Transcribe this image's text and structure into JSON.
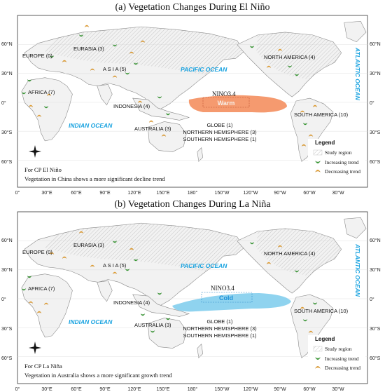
{
  "panels": [
    {
      "title": "(a) Vegetation Changes During El Niño",
      "nino_label": "NINO3.4",
      "anomaly_label": "Warm",
      "anomaly_color": "#f59a6f",
      "anomaly_text_color": "#f6f0ea",
      "note_line1": "For CP El Niño",
      "note_line2": "Vegetation in China shows a more significant decline trend"
    },
    {
      "title": "(b) Vegetation Changes During La Niña",
      "nino_label": "NINO3.4",
      "anomaly_label": "Cold",
      "anomaly_color": "#8fd3ef",
      "anomaly_text_color": "#1a90d8",
      "note_line1": "For CP La Niña",
      "note_line2": "Vegetation in Australia shows a more significant growth trend"
    }
  ],
  "regions": {
    "europe": "EUROPE (0)",
    "eurasia": "EURASIA (3)",
    "asia": "A S I A (5)",
    "africa": "AFRICA (7)",
    "indonesia": "INDONESIA (4)",
    "australia": "AUSTRALIA (3)",
    "north_america": "NORTH AMERICA (4)",
    "south_america": "SOUTH AMERICA (10)",
    "globe": "GLOBE (1)",
    "nh": "NORTHERN HEMISPHERE (3)",
    "sh": "SOUTHERN HEMISPHERE (1)"
  },
  "oceans": {
    "pacific": "PACIFIC OCEAN",
    "indian": "INDIAN OCEAN",
    "atlantic": "ATLANTIC OCEAN"
  },
  "legend": {
    "title": "Legend",
    "study_region": "Study region",
    "increasing": "Increasing trend",
    "decreasing": "Decreasing trend"
  },
  "axes": {
    "lat_left": [
      "60°N",
      "30°N",
      "0°",
      "30°S",
      "60°S"
    ],
    "lat_right": [
      "60°N",
      "30°N",
      "0°",
      "30°S",
      "60°S"
    ],
    "lon": [
      "0°",
      "30°E",
      "60°E",
      "90°E",
      "120°E",
      "150°E",
      "180°",
      "150°W",
      "120°W",
      "90°W",
      "60°W",
      "30°W"
    ]
  },
  "colors": {
    "increasing": "#3aa335",
    "decreasing": "#f0a832",
    "land": "#f2f2f2",
    "ocean_label": "#1aa3e0"
  }
}
